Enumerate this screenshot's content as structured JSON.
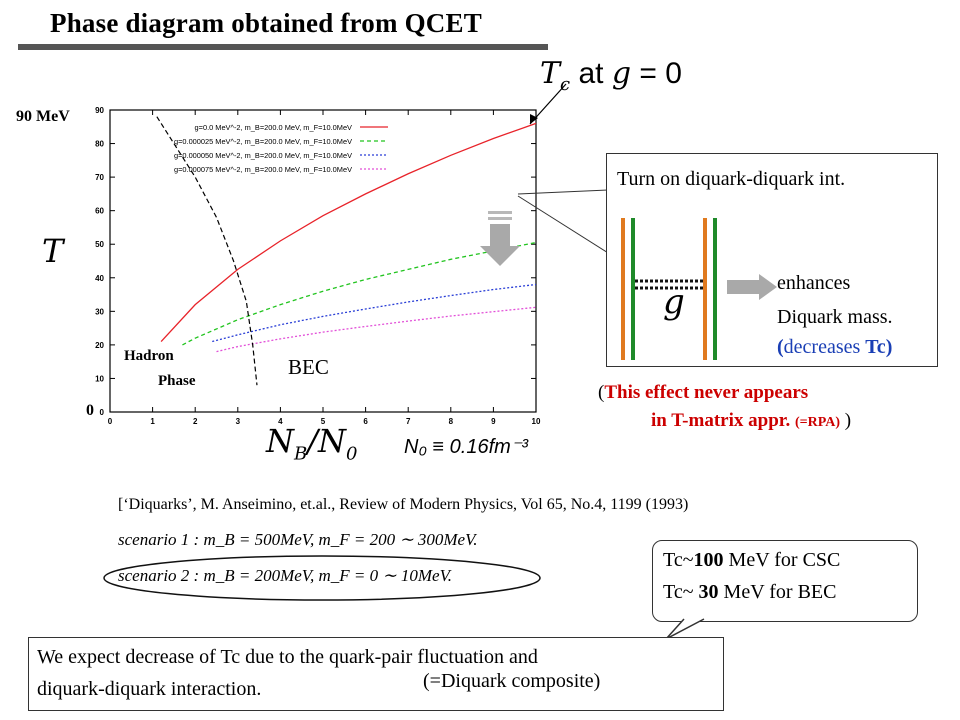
{
  "slide": {
    "title": "Phase diagram obtained from QCET"
  },
  "annotations": {
    "tc_at_g0_prefix": "T",
    "tc_at_g0_sub": "c",
    "tc_at_g0_mid": " at ",
    "tc_at_g0_g": "g",
    "tc_at_g0_eq": " = 0",
    "g_symbol": "g",
    "y_symbol": "T",
    "x_symbol": "N",
    "x_sub": "B",
    "x_slash": "/N",
    "x_sub0": "0",
    "n0_def": "N₀ ≡ 0.16fm⁻³",
    "ylabel_90": "90 MeV",
    "ylabel_0": "0",
    "hadron": "Hadron",
    "phase": "Phase",
    "bec": "BEC"
  },
  "diagram_box": {
    "turn_on": "Turn on diquark-diquark int.",
    "g_symbol": "g",
    "enhances": "enhances",
    "diquark_mass": "Diquark mass.",
    "dec_open": "(",
    "dec_text": "decreases ",
    "dec_tc": "Tc",
    "dec_close": ")"
  },
  "effect_note": {
    "open": "(",
    "line1": "This effect never appears",
    "line2": "in T-matrix appr.",
    "rpa": "(=RPA)",
    "close": " )"
  },
  "reference": {
    "citation": "[‘Diquarks’, M. Anseimino, et.al., Review of Modern Physics, Vol 65, No.4, 1199 (1993)",
    "scenario1": "scenario 1 : m_B = 500MeV, m_F = 200 ∼ 300MeV.",
    "scenario2": "scenario 2 : m_B = 200MeV, m_F = 0 ∼ 10MeV."
  },
  "tc_box": {
    "line1_a": "Tc~",
    "line1_b": "100",
    "line1_c": " MeV for  CSC",
    "line2_a": "Tc~  ",
    "line2_b": "30",
    "line2_c": " MeV for  BEC"
  },
  "expect_box": {
    "line1": "We expect decrease of Tc due to the quark-pair fluctuation and",
    "line2": "diquark-diquark interaction.",
    "line3": "(=Diquark composite)"
  },
  "chart_data": {
    "type": "line",
    "xlim": [
      0,
      10
    ],
    "ylim": [
      0,
      90
    ],
    "xticks": [
      0,
      1,
      2,
      3,
      4,
      5,
      6,
      7,
      8,
      9,
      10
    ],
    "yticks": [
      0,
      10,
      20,
      30,
      40,
      50,
      60,
      70,
      80,
      90
    ],
    "xlabel": "N_B/N_0",
    "ylabel": "T",
    "legend_position": "top",
    "series": [
      {
        "name": "g=0.0 MeV^-2, m_B=200.0 MeV, m_F=10.0MeV",
        "color": "#e8232a",
        "dash": "solid",
        "x": [
          1.2,
          2,
          3,
          4,
          5,
          6,
          7,
          8,
          9,
          10
        ],
        "y": [
          21,
          32,
          42.5,
          51,
          58.5,
          65,
          71,
          76.5,
          81.5,
          86
        ]
      },
      {
        "name": "g=0.000025 MeV^-2, m_B=200.0 MeV, m_F=10.0MeV",
        "color": "#22c41f",
        "dash": "dash",
        "x": [
          1.7,
          2,
          3,
          4,
          5,
          6,
          7,
          8,
          9,
          10
        ],
        "y": [
          20,
          22,
          27.5,
          32,
          36,
          39.5,
          42.5,
          45.5,
          48,
          50.5
        ]
      },
      {
        "name": "g=0.000050 MeV^-2, m_B=200.0 MeV, m_F=10.0MeV",
        "color": "#2a3fd6",
        "dash": "dot",
        "x": [
          2.4,
          3,
          4,
          5,
          6,
          7,
          8,
          9,
          10
        ],
        "y": [
          21,
          23,
          26,
          28.5,
          30.7,
          32.8,
          34.7,
          36.5,
          38
        ]
      },
      {
        "name": "g=0.000075 MeV^-2, m_B=200.0 MeV, m_F=10.0MeV",
        "color": "#e24fd8",
        "dash": "dot",
        "x": [
          2.5,
          3,
          4,
          5,
          6,
          7,
          8,
          9,
          10
        ],
        "y": [
          18,
          19.5,
          21.8,
          23.8,
          25.5,
          27.1,
          28.6,
          29.9,
          31.2
        ]
      }
    ],
    "phase_boundary": {
      "color": "#000",
      "dash": "dash",
      "x": [
        1.1,
        1.5,
        2.0,
        2.5,
        2.9,
        3.2,
        3.35,
        3.45
      ],
      "y": [
        88,
        80,
        70,
        58,
        45,
        33,
        20,
        8
      ]
    }
  }
}
